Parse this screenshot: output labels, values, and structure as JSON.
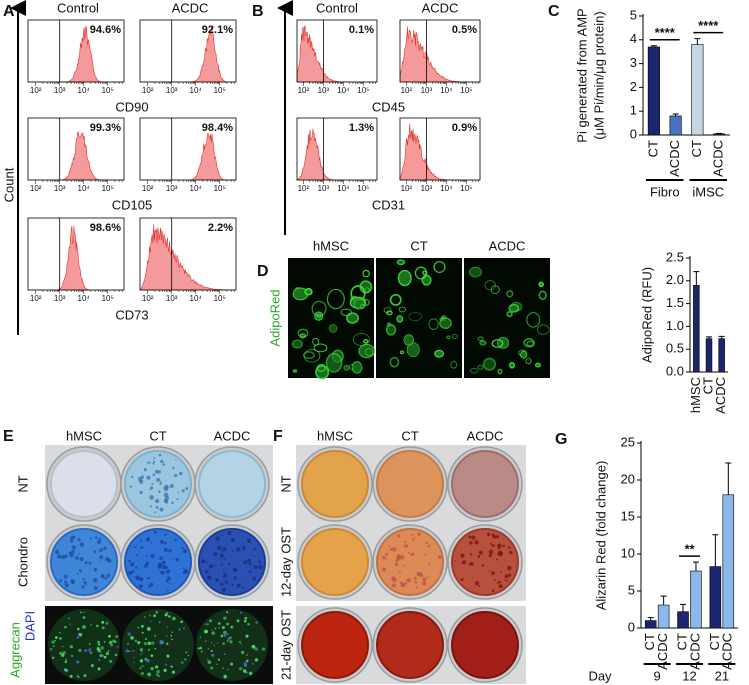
{
  "flow": {
    "tick_labels": [
      "10²",
      "10³",
      "10⁴",
      "10⁵"
    ],
    "A": {
      "label": "A",
      "y_label": "Count",
      "columns": [
        "Control",
        "ACDC"
      ],
      "rows": [
        {
          "marker": "CD90",
          "percents": [
            "94.6%",
            "92.1%"
          ]
        },
        {
          "marker": "CD105",
          "percents": [
            "99.3%",
            "98.4%"
          ]
        },
        {
          "marker": "CD73",
          "percents": [
            "98.6%",
            "2.2%"
          ]
        }
      ]
    },
    "B": {
      "label": "B",
      "columns": [
        "Control",
        "ACDC"
      ],
      "rows": [
        {
          "marker": "CD45",
          "percents": [
            "0.1%",
            "0.5%"
          ]
        },
        {
          "marker": "CD31",
          "percents": [
            "1.3%",
            "0.9%"
          ]
        }
      ]
    }
  },
  "adipo_images": {
    "label": "D",
    "columns": [
      "hMSC",
      "CT",
      "ACDC"
    ],
    "row_label": "AdipoRed"
  },
  "chondro_wells": {
    "label": "E",
    "columns": [
      "hMSC",
      "CT",
      "ACDC"
    ],
    "rows": [
      "NT",
      "Chondro"
    ],
    "stain_labels": [
      "Aggrecan",
      "DAPI"
    ]
  },
  "osteo_wells": {
    "label": "F",
    "columns": [
      "hMSC",
      "CT",
      "ACDC"
    ],
    "rows": [
      "NT",
      "12-day OST",
      "21-day OST"
    ]
  },
  "chart_data": [
    {
      "type": "bar",
      "label": "C",
      "ylabel": [
        "Pi generated from AMP",
        "(μM Pi/min/μg protein)"
      ],
      "categories": [
        "CT",
        "ACDC",
        "CT",
        "ACDC"
      ],
      "values": [
        3.7,
        0.8,
        3.8,
        0.05
      ],
      "errors": [
        0.05,
        0.08,
        0.25,
        0.02
      ],
      "colors": [
        "#1c2570",
        "#4a72c4",
        "#c3d6e8",
        "#1c2570"
      ],
      "groups": [
        "Fibro",
        "iMSC"
      ],
      "annotations": [
        "****",
        "****"
      ],
      "ylim": [
        0,
        5
      ],
      "yticks": [
        0,
        1,
        2,
        3,
        4,
        5
      ]
    },
    {
      "type": "bar",
      "ylabel": [
        "AdipoRed (RFU)"
      ],
      "categories": [
        "hMSC",
        "CT",
        "ACDC"
      ],
      "values": [
        1.9,
        0.73,
        0.73
      ],
      "errors": [
        0.3,
        0.04,
        0.05
      ],
      "color": "#1c2570",
      "ylim": [
        0,
        2.5
      ],
      "yticks": [
        {
          "value": 0,
          "label": "0.0"
        },
        {
          "value": 0.5,
          "label": "0.5"
        },
        {
          "value": 1,
          "label": "1.0"
        },
        {
          "value": 1.5,
          "label": "1.5"
        },
        {
          "value": 2,
          "label": "2.0"
        },
        {
          "value": 2.5,
          "label": "2.5"
        }
      ]
    },
    {
      "type": "bar",
      "label": "G",
      "ylabel": [
        "Alizarin Red (fold change)"
      ],
      "xlabel": "Day",
      "categories": [
        "9",
        "12",
        "21"
      ],
      "series": [
        {
          "name": "CT",
          "color": "#1c2570",
          "values": [
            1,
            2.2,
            8.3
          ],
          "errors": [
            0.4,
            1,
            4.3
          ]
        },
        {
          "name": "ACDC",
          "color": "#8ab8ea",
          "values": [
            3.1,
            7.7,
            18
          ],
          "errors": [
            1.2,
            1.2,
            4.3
          ]
        }
      ],
      "annotations": [
        "**"
      ],
      "ylim": [
        0,
        25
      ],
      "yticks": [
        0,
        5,
        10,
        15,
        20,
        25
      ]
    }
  ]
}
